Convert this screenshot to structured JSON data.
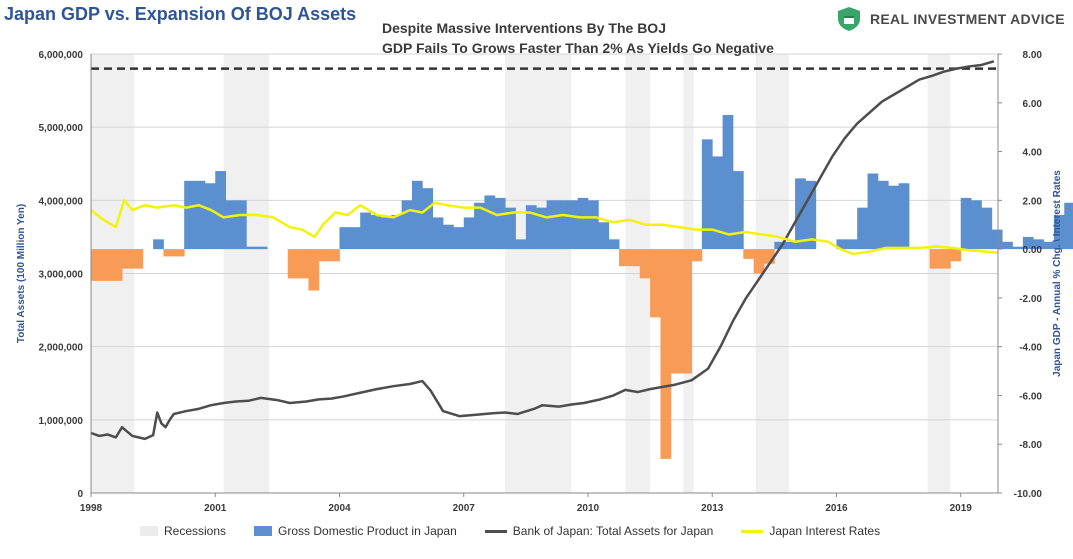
{
  "header": {
    "title": "Japan GDP vs. Expansion Of BOJ Assets",
    "subtitle_line1": "Despite Massive Interventions By The BOJ",
    "subtitle_line2": "GDP Fails To Grows Faster Than 2% As Yields Go Negative",
    "brand": "REAL INVESTMENT ADVICE"
  },
  "colors": {
    "gdp_positive": "#5b8fd0",
    "gdp_negative": "#f79b56",
    "assets_line": "#4d4d4d",
    "rates_line": "#f2f20a",
    "recession": "#f0f0f0",
    "dashed_line": "#333333",
    "brand_green": "#38a56a"
  },
  "chart_data": {
    "type": "bar",
    "left_axis": {
      "label": "Total Assets (100 Million Yen)",
      "range": [
        0,
        6000000
      ],
      "ticks": [
        "0",
        "1,000,000",
        "2,000,000",
        "3,000,000",
        "4,000,000",
        "5,000,000",
        "6,000,000"
      ]
    },
    "right_axis": {
      "label": "Japan GDP - Annual % Chg. \\ Interest Rates",
      "range": [
        -10,
        8
      ],
      "ticks": [
        "-10.00",
        "-8.00",
        "-6.00",
        "-4.00",
        "-2.00",
        "0.00",
        "2.00",
        "4.00",
        "6.00",
        "8.00"
      ]
    },
    "x_axis": {
      "range": [
        1998,
        2019.9
      ],
      "ticks": [
        "1998",
        "2001",
        "2004",
        "2007",
        "2010",
        "2013",
        "2016",
        "2019"
      ]
    },
    "grid": "horizontal",
    "legend_placement": "bottom",
    "legend": [
      "Recessions",
      "Gross Domestic Product in Japan",
      "Bank of Japan: Total Assets for Japan",
      "Japan Interest Rates"
    ],
    "dashed_reference": {
      "value": 5800000
    },
    "recessions": [
      [
        1998.0,
        1999.05
      ],
      [
        2001.2,
        2002.3
      ],
      [
        2008.0,
        2009.6
      ],
      [
        2010.9,
        2011.5
      ],
      [
        2012.3,
        2012.55
      ],
      [
        2014.05,
        2014.85
      ],
      [
        2018.2,
        2018.75
      ]
    ],
    "gdp_quarterly": {
      "name": "Gross Domestic Product in Japan",
      "start": 1998.0,
      "step": 0.25,
      "values": [
        -1.3,
        -1.3,
        -1.3,
        -0.8,
        -0.8,
        0,
        0.4,
        -0.3,
        -0.3,
        2.8,
        2.8,
        2.7,
        3.2,
        2.0,
        2.0,
        0.1,
        0.1,
        0,
        0,
        -1.2,
        -1.2,
        -1.7,
        -0.5,
        -0.5,
        0.9,
        0.9,
        1.5,
        1.4,
        1.3,
        1.4,
        2.0,
        2.8,
        2.5,
        1.3,
        1.0,
        0.9,
        1.3,
        1.9,
        2.2,
        2.1,
        1.7,
        0.4,
        1.8,
        1.7,
        2.0,
        2.0,
        2.0,
        2.1,
        2.0,
        1.1,
        0.4,
        -0.7,
        -0.7,
        -1.2,
        -2.8,
        -8.6,
        -5.1,
        -5.1,
        -0.5,
        4.5,
        3.8,
        5.5,
        3.2,
        -0.4,
        -1.0,
        -0.6,
        0.3,
        0.3,
        2.9,
        2.8,
        0,
        0,
        0.4,
        0.4,
        1.7,
        3.1,
        2.8,
        2.6,
        2.7,
        0,
        0,
        -0.8,
        -0.8,
        -0.5,
        2.1,
        2.0,
        1.7,
        0.8,
        0.3,
        0.1,
        0.5,
        0.4,
        0.3,
        1.4,
        1.9,
        2.4,
        2.6,
        2.7,
        0.9,
        1.0,
        1.0,
        -0.3,
        -0.4,
        -0.1,
        -0.1,
        0.9,
        0.9,
        1.9,
        -0.6
      ],
      "note_values": "annual % change"
    },
    "boj_assets": {
      "name": "Bank of Japan: Total Assets for Japan",
      "x": [
        1998.0,
        1998.2,
        1998.4,
        1998.6,
        1998.75,
        1998.85,
        1999.0,
        1999.15,
        1999.3,
        1999.5,
        1999.6,
        1999.7,
        1999.8,
        1999.9,
        2000.0,
        2000.3,
        2000.6,
        2000.9,
        2001.2,
        2001.5,
        2001.8,
        2002.1,
        2002.5,
        2002.8,
        2003.2,
        2003.5,
        2003.8,
        2004.1,
        2004.5,
        2004.9,
        2005.3,
        2005.7,
        2006.0,
        2006.2,
        2006.5,
        2006.9,
        2007.3,
        2007.7,
        2008.0,
        2008.3,
        2008.7,
        2008.9,
        2009.3,
        2009.6,
        2009.9,
        2010.3,
        2010.6,
        2010.9,
        2011.2,
        2011.5,
        2011.8,
        2012.1,
        2012.5,
        2012.9,
        2013.2,
        2013.5,
        2013.8,
        2014.1,
        2014.4,
        2014.7,
        2015.0,
        2015.3,
        2015.6,
        2015.9,
        2016.2,
        2016.5,
        2016.8,
        2017.1,
        2017.4,
        2017.7,
        2018.0,
        2018.3,
        2018.6,
        2018.9,
        2019.2,
        2019.5,
        2019.8
      ],
      "y": [
        820000,
        780000,
        800000,
        760000,
        900000,
        850000,
        780000,
        760000,
        740000,
        790000,
        1100000,
        950000,
        900000,
        1000000,
        1080000,
        1120000,
        1150000,
        1200000,
        1230000,
        1250000,
        1260000,
        1300000,
        1270000,
        1230000,
        1250000,
        1280000,
        1290000,
        1320000,
        1370000,
        1420000,
        1460000,
        1490000,
        1530000,
        1400000,
        1120000,
        1050000,
        1070000,
        1090000,
        1100000,
        1080000,
        1150000,
        1200000,
        1180000,
        1210000,
        1230000,
        1280000,
        1330000,
        1410000,
        1380000,
        1420000,
        1450000,
        1480000,
        1540000,
        1700000,
        2000000,
        2350000,
        2650000,
        2900000,
        3150000,
        3400000,
        3700000,
        4000000,
        4300000,
        4600000,
        4850000,
        5050000,
        5200000,
        5350000,
        5450000,
        5550000,
        5650000,
        5700000,
        5760000,
        5800000,
        5830000,
        5850000,
        5900000
      ]
    },
    "interest_rates": {
      "name": "Japan Interest Rates",
      "x": [
        1998.0,
        1998.3,
        1998.6,
        1998.8,
        1999.0,
        1999.3,
        1999.6,
        2000.0,
        2000.3,
        2000.6,
        2000.9,
        2001.2,
        2001.6,
        2002.0,
        2002.4,
        2002.8,
        2003.1,
        2003.4,
        2003.6,
        2003.9,
        2004.2,
        2004.5,
        2004.9,
        2005.3,
        2005.7,
        2006.0,
        2006.3,
        2006.6,
        2007.0,
        2007.4,
        2007.8,
        2008.2,
        2008.6,
        2009.0,
        2009.4,
        2009.8,
        2010.2,
        2010.6,
        2011.0,
        2011.4,
        2011.8,
        2012.2,
        2012.6,
        2013.0,
        2013.4,
        2013.8,
        2014.2,
        2014.6,
        2015.0,
        2015.4,
        2015.8,
        2016.1,
        2016.4,
        2016.8,
        2017.2,
        2017.6,
        2018.0,
        2018.4,
        2018.8,
        2019.2,
        2019.6,
        2019.9
      ],
      "y": [
        1.6,
        1.2,
        0.9,
        2.0,
        1.6,
        1.8,
        1.7,
        1.8,
        1.7,
        1.8,
        1.6,
        1.3,
        1.4,
        1.4,
        1.3,
        0.9,
        0.8,
        0.5,
        1.0,
        1.5,
        1.4,
        1.8,
        1.4,
        1.3,
        1.6,
        1.5,
        1.9,
        1.8,
        1.7,
        1.7,
        1.4,
        1.5,
        1.5,
        1.3,
        1.4,
        1.3,
        1.3,
        1.1,
        1.2,
        1.0,
        1.0,
        0.9,
        0.8,
        0.8,
        0.6,
        0.7,
        0.6,
        0.5,
        0.3,
        0.4,
        0.3,
        0.0,
        -0.2,
        -0.1,
        0.05,
        0.05,
        0.05,
        0.1,
        0.05,
        -0.05,
        -0.1,
        -0.15
      ]
    }
  }
}
